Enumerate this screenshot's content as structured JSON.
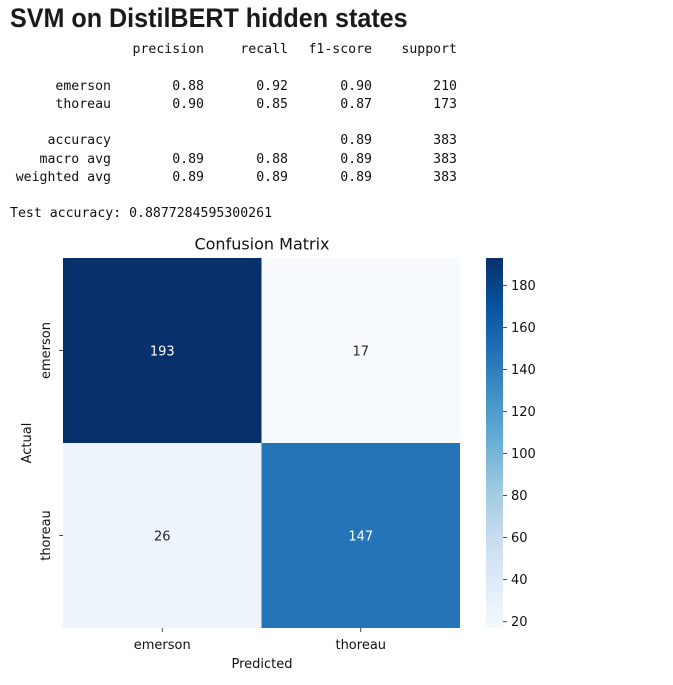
{
  "page_title": "SVM on DistilBERT hidden states",
  "report": {
    "header": [
      "precision",
      "recall",
      "f1-score",
      "support"
    ],
    "rows": [
      {
        "label": "emerson",
        "precision": "0.88",
        "recall": "0.92",
        "f1": "0.90",
        "support": "210"
      },
      {
        "label": "thoreau",
        "precision": "0.90",
        "recall": "0.85",
        "f1": "0.87",
        "support": "173"
      },
      null,
      {
        "label": "accuracy",
        "precision": "",
        "recall": "",
        "f1": "0.89",
        "support": "383"
      },
      {
        "label": "macro avg",
        "precision": "0.89",
        "recall": "0.88",
        "f1": "0.89",
        "support": "383"
      },
      {
        "label": "weighted avg",
        "precision": "0.89",
        "recall": "0.89",
        "f1": "0.89",
        "support": "383"
      }
    ]
  },
  "test_accuracy": "Test accuracy: 0.8877284595300261",
  "chart_data": {
    "type": "heatmap",
    "title": "Confusion Matrix",
    "xlabel": "Predicted",
    "ylabel": "Actual",
    "x_categories": [
      "emerson",
      "thoreau"
    ],
    "y_categories": [
      "emerson",
      "thoreau"
    ],
    "values": [
      [
        193,
        17
      ],
      [
        26,
        147
      ]
    ],
    "colorbar": {
      "cmap": "Blues",
      "vmin": 17,
      "vmax": 193,
      "ticks": [
        20,
        40,
        60,
        80,
        100,
        120,
        140,
        160,
        180
      ]
    }
  }
}
